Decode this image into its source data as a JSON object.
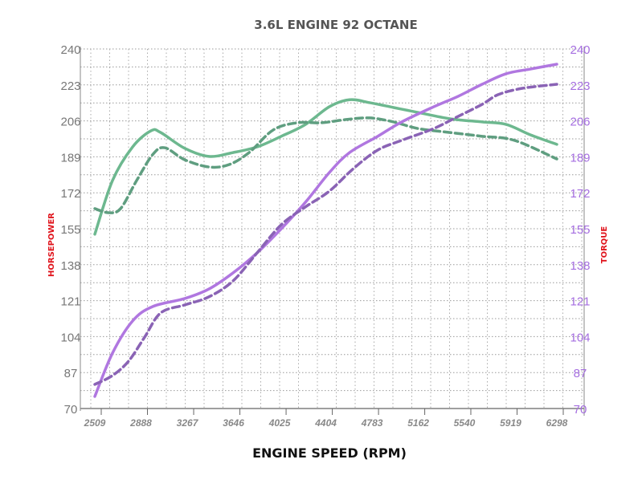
{
  "chart_data": {
    "type": "line",
    "title": "3.6L ENGINE 92 OCTANE",
    "xlabel": "ENGINE SPEED (RPM)",
    "ylabel": "HORSEPOWER",
    "y2label": "TORQUE",
    "xlim": [
      2509,
      6298
    ],
    "ylim": [
      70,
      240
    ],
    "x_ticks": [
      "2509",
      "2888",
      "3267",
      "3646",
      "4025",
      "4404",
      "4783",
      "5162",
      "5540",
      "5919",
      "6298"
    ],
    "y_ticks": [
      "240",
      "223",
      "206",
      "189",
      "172",
      "155",
      "138",
      "121",
      "104",
      "87",
      "70"
    ],
    "grid": true,
    "colors": {
      "hp": "#6db88f",
      "hp_dashed": "#5f9e80",
      "tq": "#b077e0",
      "tq_dashed": "#8a63b5",
      "axis_label": "#e0141c",
      "left_ticks": "#777777",
      "right_ticks": "#a56ee0",
      "title": "#555555"
    },
    "series": [
      {
        "name": "Horsepower",
        "style": "solid",
        "color": "#6db88f",
        "points": [
          [
            2509,
            152.4
          ],
          [
            2654,
            177.8
          ],
          [
            2819,
            193.7
          ],
          [
            2970,
            201.3
          ],
          [
            3049,
            200.5
          ],
          [
            3247,
            193
          ],
          [
            3445,
            189.2
          ],
          [
            3642,
            191
          ],
          [
            3840,
            193.7
          ],
          [
            4038,
            198.7
          ],
          [
            4236,
            204.3
          ],
          [
            4433,
            212.7
          ],
          [
            4598,
            216
          ],
          [
            4763,
            214.6
          ],
          [
            4960,
            212.3
          ],
          [
            5158,
            210
          ],
          [
            5422,
            207
          ],
          [
            5685,
            205.5
          ],
          [
            5883,
            204.3
          ],
          [
            6081,
            199.4
          ],
          [
            6298,
            194.9
          ]
        ]
      },
      {
        "name": "Horsepower (dashed)",
        "style": "dashed",
        "color": "#5f9e80",
        "points": [
          [
            2509,
            164.5
          ],
          [
            2621,
            162.6
          ],
          [
            2720,
            164.5
          ],
          [
            2852,
            177.8
          ],
          [
            2983,
            190
          ],
          [
            3082,
            193.3
          ],
          [
            3247,
            187.6
          ],
          [
            3445,
            184.2
          ],
          [
            3609,
            185.3
          ],
          [
            3774,
            191
          ],
          [
            3972,
            201.7
          ],
          [
            4170,
            205.1
          ],
          [
            4367,
            205.1
          ],
          [
            4565,
            206.6
          ],
          [
            4763,
            207.4
          ],
          [
            4960,
            205.5
          ],
          [
            5158,
            202.4
          ],
          [
            5422,
            200.5
          ],
          [
            5685,
            198.7
          ],
          [
            5949,
            196.8
          ],
          [
            6298,
            188
          ]
        ]
      },
      {
        "name": "Torque",
        "style": "solid",
        "color": "#b077e0",
        "points": [
          [
            2509,
            75.7
          ],
          [
            2654,
            96.2
          ],
          [
            2819,
            111.4
          ],
          [
            2983,
            118.2
          ],
          [
            3247,
            122
          ],
          [
            3445,
            126.5
          ],
          [
            3642,
            134.1
          ],
          [
            3840,
            143.6
          ],
          [
            4038,
            155
          ],
          [
            4236,
            167.5
          ],
          [
            4433,
            181.6
          ],
          [
            4598,
            191
          ],
          [
            4829,
            198.7
          ],
          [
            5026,
            205.5
          ],
          [
            5290,
            212.7
          ],
          [
            5488,
            217.6
          ],
          [
            5685,
            223.3
          ],
          [
            5883,
            228.3
          ],
          [
            6081,
            230.5
          ],
          [
            6298,
            232.8
          ]
        ]
      },
      {
        "name": "Torque (dashed)",
        "style": "dashed",
        "color": "#8a63b5",
        "points": [
          [
            2509,
            81.4
          ],
          [
            2654,
            85.6
          ],
          [
            2786,
            92.4
          ],
          [
            2918,
            103.8
          ],
          [
            3049,
            115.2
          ],
          [
            3247,
            119
          ],
          [
            3445,
            122.8
          ],
          [
            3642,
            130.3
          ],
          [
            3840,
            143.6
          ],
          [
            4038,
            156.9
          ],
          [
            4236,
            165.3
          ],
          [
            4433,
            172.8
          ],
          [
            4631,
            183.5
          ],
          [
            4829,
            192.2
          ],
          [
            5026,
            196.8
          ],
          [
            5290,
            202.4
          ],
          [
            5488,
            208.1
          ],
          [
            5685,
            213.8
          ],
          [
            5817,
            218.4
          ],
          [
            6015,
            221.4
          ],
          [
            6298,
            223.3
          ]
        ]
      }
    ]
  }
}
